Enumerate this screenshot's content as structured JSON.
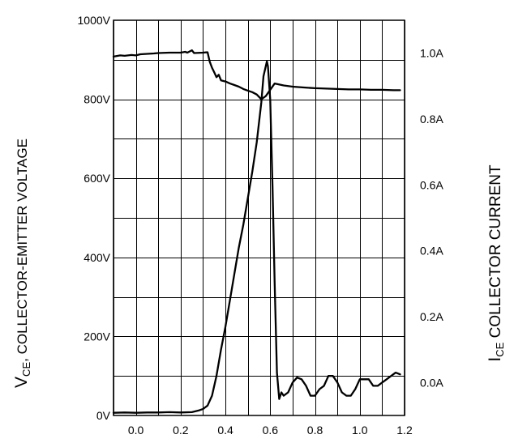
{
  "chart_data": {
    "type": "line",
    "title": "",
    "xlabel": "",
    "ylabel_left": {
      "main": "V",
      "sub": "CE",
      "rest": ", COLLECTOR-EMITTER VOLTAGE"
    },
    "ylabel_right": {
      "main": "I",
      "sub": "CE",
      "rest": " COLLECTOR  CURRENT"
    },
    "x_ticks": [
      "0.0",
      "0.2",
      "0.4",
      "0.6",
      "0.8",
      "1.0",
      "1.2"
    ],
    "x_tick_values": [
      0.0,
      0.2,
      0.4,
      0.6,
      0.8,
      1.0,
      1.2
    ],
    "left_ticks": [
      "0V",
      "200V",
      "400V",
      "600V",
      "800V",
      "1000V"
    ],
    "left_tick_values": [
      0,
      200,
      400,
      600,
      800,
      1000
    ],
    "right_ticks": [
      "0.0A",
      "0.2A",
      "0.4A",
      "0.6A",
      "0.8A",
      "1.0A"
    ],
    "right_tick_values": [
      0.0,
      0.2,
      0.4,
      0.6,
      0.8,
      1.0
    ],
    "xlim": [
      -0.1,
      1.2
    ],
    "ylim_left": [
      0,
      1000
    ],
    "ylim_right": [
      -0.1,
      1.1
    ],
    "grid": true,
    "series": [
      {
        "axis": "left",
        "points": [
          [
            -0.1,
            908
          ],
          [
            -0.07,
            911
          ],
          [
            -0.05,
            910
          ],
          [
            -0.02,
            912
          ],
          [
            0.0,
            911
          ],
          [
            0.02,
            914
          ],
          [
            0.05,
            915
          ],
          [
            0.08,
            916
          ],
          [
            0.1,
            917
          ],
          [
            0.15,
            918
          ],
          [
            0.2,
            918
          ],
          [
            0.22,
            920
          ],
          [
            0.23,
            918
          ],
          [
            0.25,
            924
          ],
          [
            0.26,
            917
          ],
          [
            0.3,
            918
          ],
          [
            0.32,
            919
          ],
          [
            0.33,
            895
          ],
          [
            0.34,
            880
          ],
          [
            0.35,
            868
          ],
          [
            0.36,
            856
          ],
          [
            0.37,
            862
          ],
          [
            0.38,
            848
          ],
          [
            0.4,
            845
          ],
          [
            0.42,
            840
          ],
          [
            0.44,
            836
          ],
          [
            0.46,
            832
          ],
          [
            0.48,
            826
          ],
          [
            0.5,
            822
          ],
          [
            0.52,
            818
          ],
          [
            0.54,
            812
          ],
          [
            0.56,
            800
          ],
          [
            0.58,
            808
          ],
          [
            0.62,
            840
          ],
          [
            0.66,
            835
          ],
          [
            0.7,
            832
          ],
          [
            0.75,
            830
          ],
          [
            0.8,
            828
          ],
          [
            0.85,
            827
          ],
          [
            0.9,
            826
          ],
          [
            0.95,
            825
          ],
          [
            1.0,
            825
          ],
          [
            1.05,
            824
          ],
          [
            1.1,
            824
          ],
          [
            1.15,
            823
          ],
          [
            1.18,
            823
          ]
        ]
      },
      {
        "axis": "right",
        "points": [
          [
            -0.1,
            -0.092
          ],
          [
            -0.05,
            -0.091
          ],
          [
            0.0,
            -0.092
          ],
          [
            0.05,
            -0.091
          ],
          [
            0.1,
            -0.091
          ],
          [
            0.15,
            -0.09
          ],
          [
            0.2,
            -0.091
          ],
          [
            0.25,
            -0.09
          ],
          [
            0.28,
            -0.085
          ],
          [
            0.3,
            -0.08
          ],
          [
            0.32,
            -0.07
          ],
          [
            0.34,
            -0.04
          ],
          [
            0.36,
            0.02
          ],
          [
            0.38,
            0.1
          ],
          [
            0.4,
            0.17
          ],
          [
            0.42,
            0.25
          ],
          [
            0.44,
            0.33
          ],
          [
            0.46,
            0.41
          ],
          [
            0.48,
            0.48
          ],
          [
            0.5,
            0.56
          ],
          [
            0.52,
            0.64
          ],
          [
            0.54,
            0.73
          ],
          [
            0.56,
            0.85
          ],
          [
            0.57,
            0.93
          ],
          [
            0.58,
            0.96
          ],
          [
            0.585,
            0.975
          ],
          [
            0.59,
            0.96
          ],
          [
            0.6,
            0.86
          ],
          [
            0.61,
            0.6
          ],
          [
            0.62,
            0.3
          ],
          [
            0.63,
            0.03
          ],
          [
            0.64,
            -0.05
          ],
          [
            0.65,
            -0.03
          ],
          [
            0.66,
            -0.04
          ],
          [
            0.68,
            -0.03
          ],
          [
            0.7,
            0.0
          ],
          [
            0.72,
            0.015
          ],
          [
            0.74,
            0.01
          ],
          [
            0.76,
            -0.01
          ],
          [
            0.78,
            -0.04
          ],
          [
            0.8,
            -0.04
          ],
          [
            0.82,
            -0.02
          ],
          [
            0.84,
            -0.01
          ],
          [
            0.86,
            0.02
          ],
          [
            0.88,
            0.02
          ],
          [
            0.9,
            0.0
          ],
          [
            0.92,
            -0.03
          ],
          [
            0.94,
            -0.04
          ],
          [
            0.96,
            -0.04
          ],
          [
            0.98,
            -0.02
          ],
          [
            1.0,
            0.01
          ],
          [
            1.02,
            0.01
          ],
          [
            1.04,
            0.01
          ],
          [
            1.06,
            -0.01
          ],
          [
            1.08,
            -0.01
          ],
          [
            1.1,
            0.0
          ],
          [
            1.12,
            0.01
          ],
          [
            1.14,
            0.02
          ],
          [
            1.16,
            0.03
          ],
          [
            1.18,
            0.025
          ]
        ]
      }
    ]
  }
}
